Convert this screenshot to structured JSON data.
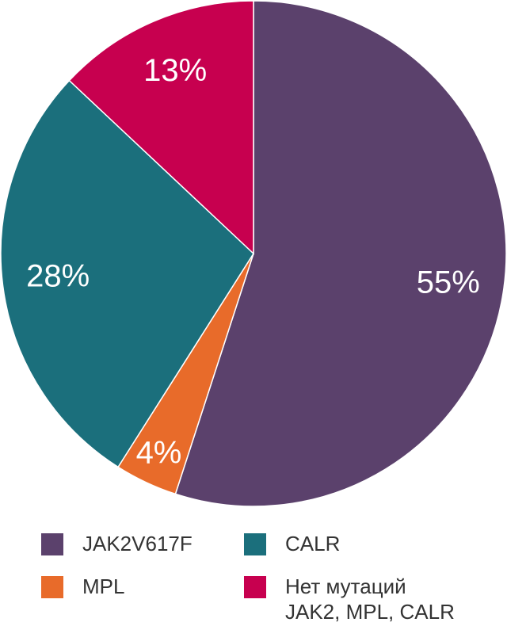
{
  "chart_data": {
    "type": "pie",
    "categories": [
      "JAK2V617F",
      "MPL",
      "CALR",
      "Нет мутаций\nJAK2, MPL, CALR"
    ],
    "values": [
      55,
      4,
      28,
      13
    ],
    "value_labels": [
      "55%",
      "4%",
      "28%",
      "13%"
    ],
    "colors": [
      "#5b416c",
      "#e86b2a",
      "#1b6f7c",
      "#c7004f"
    ]
  }
}
